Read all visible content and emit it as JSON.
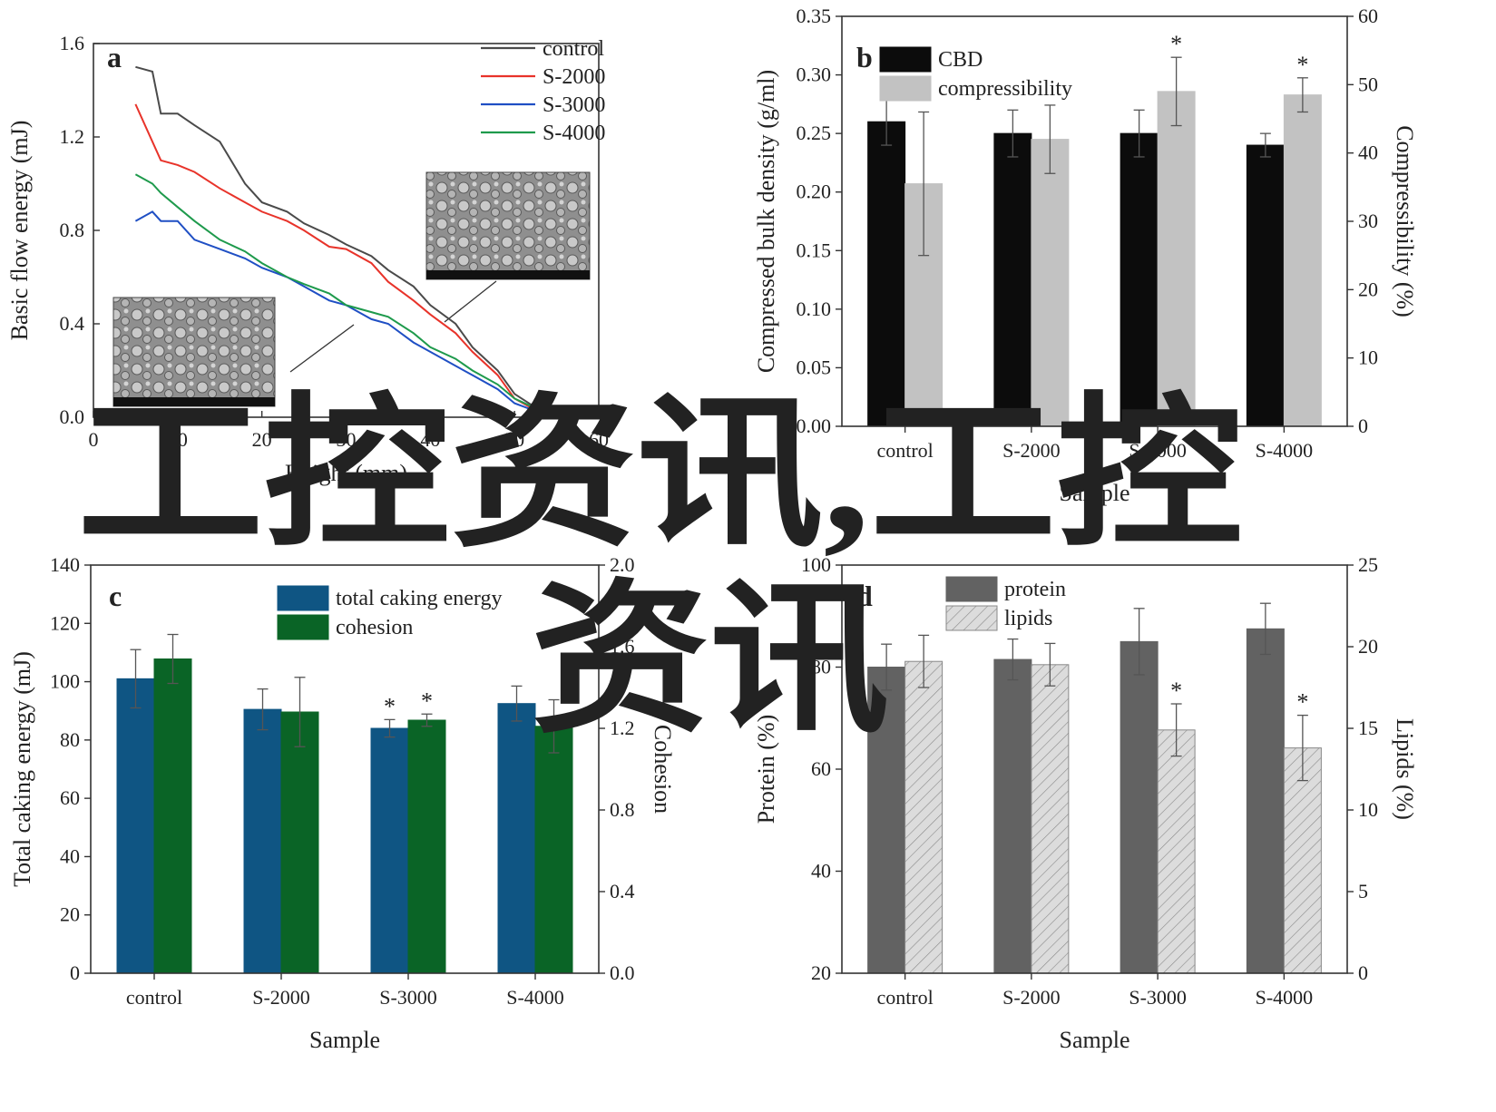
{
  "watermark": {
    "line1": "工控资讯,工控",
    "line2": "资讯",
    "color": "#ff4a12"
  },
  "chart_data": [
    {
      "panel": "a",
      "type": "line",
      "xlabel": "Height (mm)",
      "ylabel": "Basic flow energy (mJ)",
      "xlim": [
        0,
        60
      ],
      "ylim": [
        0.0,
        1.6
      ],
      "xticks": [
        0,
        10,
        20,
        30,
        40,
        50,
        60
      ],
      "yticks": [
        0.0,
        0.4,
        0.8,
        1.2,
        1.6
      ],
      "legend_position": "top-right",
      "series": [
        {
          "name": "control",
          "color": "#4a4a4a",
          "x": [
            5,
            7,
            8,
            10,
            12,
            15,
            18,
            20,
            23,
            25,
            28,
            30,
            33,
            35,
            38,
            40,
            43,
            45,
            48,
            50,
            53,
            55
          ],
          "y": [
            1.5,
            1.48,
            1.3,
            1.3,
            1.25,
            1.18,
            1.0,
            0.92,
            0.88,
            0.83,
            0.78,
            0.74,
            0.69,
            0.63,
            0.56,
            0.48,
            0.4,
            0.3,
            0.2,
            0.1,
            0.03,
            0.0
          ]
        },
        {
          "name": "S-2000",
          "color": "#e8332a",
          "x": [
            5,
            7,
            8,
            10,
            12,
            15,
            18,
            20,
            23,
            25,
            28,
            30,
            33,
            35,
            38,
            40,
            43,
            45,
            48,
            50,
            53,
            55
          ],
          "y": [
            1.34,
            1.18,
            1.1,
            1.08,
            1.05,
            0.98,
            0.92,
            0.88,
            0.84,
            0.8,
            0.73,
            0.72,
            0.66,
            0.58,
            0.5,
            0.44,
            0.36,
            0.28,
            0.18,
            0.08,
            0.02,
            0.0
          ]
        },
        {
          "name": "S-3000",
          "color": "#1f4fc4",
          "x": [
            5,
            7,
            8,
            10,
            12,
            15,
            18,
            20,
            23,
            25,
            28,
            30,
            33,
            35,
            38,
            40,
            43,
            45,
            48,
            50,
            53,
            55
          ],
          "y": [
            0.84,
            0.88,
            0.84,
            0.84,
            0.76,
            0.72,
            0.68,
            0.64,
            0.6,
            0.56,
            0.5,
            0.48,
            0.42,
            0.4,
            0.32,
            0.28,
            0.22,
            0.18,
            0.12,
            0.06,
            0.02,
            0.0
          ]
        },
        {
          "name": "S-4000",
          "color": "#1e9a4c",
          "x": [
            5,
            7,
            8,
            10,
            12,
            15,
            18,
            20,
            23,
            25,
            28,
            30,
            33,
            35,
            38,
            40,
            43,
            45,
            48,
            50,
            53,
            55
          ],
          "y": [
            1.04,
            1.0,
            0.96,
            0.9,
            0.84,
            0.76,
            0.71,
            0.66,
            0.6,
            0.57,
            0.53,
            0.48,
            0.45,
            0.43,
            0.36,
            0.3,
            0.25,
            0.2,
            0.14,
            0.08,
            0.03,
            0.0
          ]
        }
      ],
      "insets": [
        {
          "name": "sem-image-upper"
        },
        {
          "name": "sem-image-lower"
        }
      ]
    },
    {
      "panel": "b",
      "type": "bar",
      "categories": [
        "control",
        "S-2000",
        "S-3000",
        "S-4000"
      ],
      "xlabel": "Sample",
      "ylabel_left": "Compressed bulk density (g/ml)",
      "ylabel_right": "Compressibility (%)",
      "ylim_left": [
        0.0,
        0.35
      ],
      "ylim_right": [
        0,
        60
      ],
      "yticks_left": [
        "0.00",
        "0.05",
        "0.10",
        "0.15",
        "0.20",
        "0.25",
        "0.30",
        "0.35"
      ],
      "yticks_right": [
        "0",
        "10",
        "20",
        "30",
        "40",
        "50",
        "60"
      ],
      "legend_position": "top-left",
      "series": [
        {
          "name": "CBD",
          "axis": "left",
          "color": "#0c0c0c",
          "hatch": false,
          "values": [
            0.26,
            0.25,
            0.25,
            0.24
          ],
          "errors": [
            0.02,
            0.02,
            0.02,
            0.01
          ],
          "significant": [
            false,
            false,
            false,
            false
          ]
        },
        {
          "name": "compressibility",
          "axis": "right",
          "color": "#c2c2c2",
          "hatch": false,
          "values": [
            35.5,
            42.0,
            49.0,
            48.5
          ],
          "errors": [
            10.5,
            5.0,
            5.0,
            2.5
          ],
          "significant": [
            false,
            false,
            true,
            true
          ]
        }
      ]
    },
    {
      "panel": "c",
      "type": "bar",
      "categories": [
        "control",
        "S-2000",
        "S-3000",
        "S-4000"
      ],
      "xlabel": "Sample",
      "ylabel_left": "Total caking energy (mJ)",
      "ylabel_right": "Cohesion",
      "ylim_left": [
        0,
        140
      ],
      "ylim_right": [
        0.0,
        2.0
      ],
      "yticks_left": [
        "0",
        "20",
        "40",
        "60",
        "80",
        "100",
        "120",
        "140"
      ],
      "yticks_right": [
        "0.0",
        "0.4",
        "0.8",
        "1.2",
        "1.6",
        "2.0"
      ],
      "legend_position": "top-center",
      "series": [
        {
          "name": "total caking energy",
          "axis": "left",
          "color": "#0f5583",
          "hatch": false,
          "values": [
            101,
            90.5,
            84,
            92.5
          ],
          "errors": [
            10,
            7,
            3,
            6
          ],
          "significant": [
            false,
            false,
            true,
            false
          ]
        },
        {
          "name": "cohesion",
          "axis": "right",
          "color": "#0a6426",
          "hatch": false,
          "values": [
            1.54,
            1.28,
            1.24,
            1.21
          ],
          "errors": [
            0.12,
            0.17,
            0.03,
            0.13
          ],
          "significant": [
            false,
            false,
            true,
            false
          ]
        }
      ]
    },
    {
      "panel": "d",
      "type": "bar",
      "categories": [
        "control",
        "S-2000",
        "S-3000",
        "S-4000"
      ],
      "xlabel": "Sample",
      "ylabel_left": "Protein (%)",
      "ylabel_right": "Lipids (%)",
      "ylim_left": [
        20,
        100
      ],
      "ylim_right": [
        0,
        25
      ],
      "yticks_left": [
        "20",
        "40",
        "60",
        "80",
        "100"
      ],
      "yticks_right": [
        "0",
        "5",
        "10",
        "15",
        "20",
        "25"
      ],
      "legend_position": "top-left",
      "series": [
        {
          "name": "protein",
          "axis": "left",
          "color": "#626262",
          "hatch": false,
          "values": [
            80,
            81.5,
            85,
            87.5
          ],
          "errors": [
            4.5,
            4,
            6.5,
            5
          ],
          "significant": [
            false,
            false,
            false,
            false
          ]
        },
        {
          "name": "lipids",
          "axis": "right",
          "color": "#dcdcdc",
          "hatch": true,
          "values": [
            19.1,
            18.9,
            14.9,
            13.8
          ],
          "errors": [
            1.6,
            1.3,
            1.6,
            2.0
          ],
          "significant": [
            false,
            false,
            true,
            true
          ]
        }
      ]
    }
  ]
}
